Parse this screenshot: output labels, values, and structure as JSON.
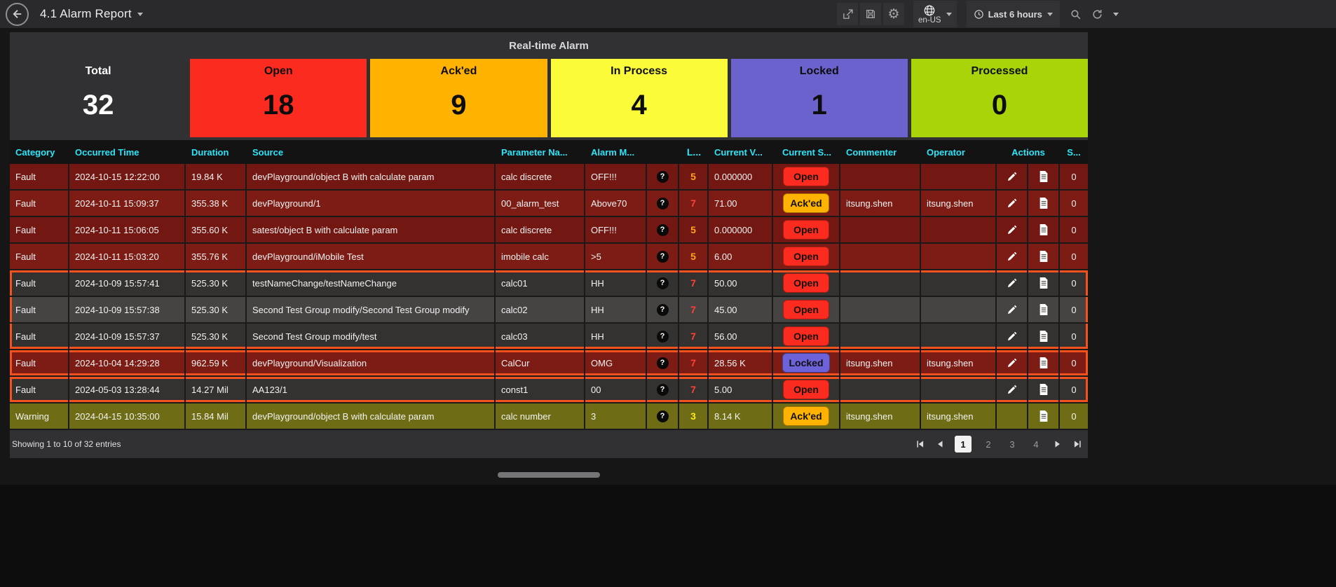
{
  "topbar": {
    "title": "4.1 Alarm Report",
    "language": {
      "label": "en-US"
    },
    "time_picker": {
      "label": "Last 6 hours"
    },
    "icons": [
      "back-arrow-icon",
      "share-icon",
      "save-icon",
      "gear-icon",
      "globe-icon",
      "clock-icon",
      "search-icon",
      "refresh-icon",
      "caret-down-icon"
    ],
    "gear_glyph": "⚙"
  },
  "panel": {
    "title": "Real-time Alarm",
    "stats": [
      {
        "label": "Total",
        "value": "32",
        "bg": "",
        "fg": "#ffffff"
      },
      {
        "label": "Open",
        "value": "18",
        "bg": "#fb2b1f",
        "fg": "#0d0d0d"
      },
      {
        "label": "Ack'ed",
        "value": "9",
        "bg": "#ffb200",
        "fg": "#0d0d0d"
      },
      {
        "label": "In Process",
        "value": "4",
        "bg": "#fbfb3a",
        "fg": "#0d0d0d"
      },
      {
        "label": "Locked",
        "value": "1",
        "bg": "#6b62ce",
        "fg": "#0d0d0d"
      },
      {
        "label": "Processed",
        "value": "0",
        "bg": "#a8d409",
        "fg": "#0d0d0d"
      }
    ],
    "table": {
      "headers": [
        {
          "label": "Category",
          "key": "category"
        },
        {
          "label": "Occurred Time",
          "key": "time"
        },
        {
          "label": "Duration",
          "key": "duration"
        },
        {
          "label": "Source",
          "key": "source"
        },
        {
          "label": "Parameter Na...",
          "key": "parameter"
        },
        {
          "label": "Alarm M...",
          "key": "message"
        },
        {
          "label": "",
          "key": "help"
        },
        {
          "label": "L...",
          "key": "level"
        },
        {
          "label": "Current V...",
          "key": "value"
        },
        {
          "label": "Current S...",
          "key": "status"
        },
        {
          "label": "Commenter",
          "key": "commenter"
        },
        {
          "label": "Operator",
          "key": "operator"
        },
        {
          "label": "Actions",
          "key": "actions"
        },
        {
          "label": "S...",
          "key": "s"
        }
      ],
      "row_icons": [
        "help-icon",
        "pencil-icon",
        "document-icon"
      ],
      "rows": [
        {
          "category": "Fault",
          "occurred_time": "2024-10-15 12:22:00",
          "duration": "19.84 K",
          "source": "devPlayground/object B with calculate param",
          "parameter_name": "calc discrete",
          "alarm_message": "OFF!!!",
          "level": "5",
          "level_color": "#ffa421",
          "current_value": "0.000000",
          "current_state": "Open",
          "state_bg": "#fb2b1f",
          "commenter": "",
          "operator": "",
          "actions": [
            "edit",
            "log"
          ],
          "s_value": "0",
          "theme": "maroon-a",
          "highlight": ""
        },
        {
          "category": "Fault",
          "occurred_time": "2024-10-11 15:09:37",
          "duration": "355.38 K",
          "source": "devPlayground/1",
          "parameter_name": "00_alarm_test",
          "alarm_message": "Above70",
          "level": "7",
          "level_color": "#ff4136",
          "current_value": "71.00",
          "current_state": "Ack'ed",
          "state_bg": "#ffb300",
          "commenter": "itsung.shen",
          "operator": "itsung.shen",
          "actions": [
            "edit",
            "log"
          ],
          "s_value": "0",
          "theme": "maroon-b",
          "highlight": ""
        },
        {
          "category": "Fault",
          "occurred_time": "2024-10-11 15:06:05",
          "duration": "355.60 K",
          "source": "satest/object B with calculate param",
          "parameter_name": "calc discrete",
          "alarm_message": "OFF!!!",
          "level": "5",
          "level_color": "#ffa421",
          "current_value": "0.000000",
          "current_state": "Open",
          "state_bg": "#fb2b1f",
          "commenter": "",
          "operator": "",
          "actions": [
            "edit",
            "log"
          ],
          "s_value": "0",
          "theme": "maroon-a",
          "highlight": ""
        },
        {
          "category": "Fault",
          "occurred_time": "2024-10-11 15:03:20",
          "duration": "355.76 K",
          "source": "devPlayground/iMobile Test",
          "parameter_name": "imobile calc",
          "alarm_message": ">5",
          "level": "5",
          "level_color": "#ffa421",
          "current_value": "6.00",
          "current_state": "Open",
          "state_bg": "#fb2b1f",
          "commenter": "",
          "operator": "",
          "actions": [
            "edit",
            "log"
          ],
          "s_value": "0",
          "theme": "maroon-b",
          "highlight": ""
        },
        {
          "category": "Fault",
          "occurred_time": "2024-10-09 15:57:41",
          "duration": "525.30 K",
          "source": "testNameChange/testNameChange",
          "parameter_name": "calc01",
          "alarm_message": "HH",
          "level": "7",
          "level_color": "#ff4136",
          "current_value": "50.00",
          "current_state": "Open",
          "state_bg": "#fb2b1f",
          "commenter": "",
          "operator": "",
          "actions": [
            "edit",
            "log"
          ],
          "s_value": "0",
          "theme": "gray-a",
          "highlight": "start"
        },
        {
          "category": "Fault",
          "occurred_time": "2024-10-09 15:57:38",
          "duration": "525.30 K",
          "source": "Second Test Group modify/Second Test Group modify",
          "parameter_name": "calc02",
          "alarm_message": "HH",
          "level": "7",
          "level_color": "#ff4136",
          "current_value": "45.00",
          "current_state": "Open",
          "state_bg": "#fb2b1f",
          "commenter": "",
          "operator": "",
          "actions": [
            "edit",
            "log"
          ],
          "s_value": "0",
          "theme": "gray-b",
          "highlight": "mid"
        },
        {
          "category": "Fault",
          "occurred_time": "2024-10-09 15:57:37",
          "duration": "525.30 K",
          "source": "Second Test Group modify/test",
          "parameter_name": "calc03",
          "alarm_message": "HH",
          "level": "7",
          "level_color": "#ff4136",
          "current_value": "56.00",
          "current_state": "Open",
          "state_bg": "#fb2b1f",
          "commenter": "",
          "operator": "",
          "actions": [
            "edit",
            "log"
          ],
          "s_value": "0",
          "theme": "gray-a",
          "highlight": "end"
        },
        {
          "category": "Fault",
          "occurred_time": "2024-10-04 14:29:28",
          "duration": "962.59 K",
          "source": "devPlayground/Visualization",
          "parameter_name": "CalCur",
          "alarm_message": "OMG",
          "level": "7",
          "level_color": "#ff4136",
          "current_value": "28.56 K",
          "current_state": "Locked",
          "state_bg": "#6e62d8",
          "commenter": "itsung.shen",
          "operator": "itsung.shen",
          "actions": [
            "edit",
            "log"
          ],
          "s_value": "0",
          "theme": "maroon-b",
          "highlight": "single"
        },
        {
          "category": "Fault",
          "occurred_time": "2024-05-03 13:28:44",
          "duration": "14.27 Mil",
          "source": "AA123/1",
          "parameter_name": "const1",
          "alarm_message": "00",
          "level": "7",
          "level_color": "#ff4136",
          "current_value": "5.00",
          "current_state": "Open",
          "state_bg": "#fb2b1f",
          "commenter": "",
          "operator": "",
          "actions": [
            "edit",
            "log"
          ],
          "s_value": "0",
          "theme": "gray-a",
          "highlight": "single"
        },
        {
          "category": "Warning",
          "occurred_time": "2024-04-15 10:35:00",
          "duration": "15.84 Mil",
          "source": "devPlayground/object B with calculate param",
          "parameter_name": "calc number",
          "alarm_message": "3",
          "level": "3",
          "level_color": "#ffe81a",
          "current_value": "8.14 K",
          "current_state": "Ack'ed",
          "state_bg": "#ffb300",
          "commenter": "itsung.shen",
          "operator": "itsung.shen",
          "actions": [
            "log"
          ],
          "s_value": "0",
          "theme": "olive",
          "highlight": ""
        }
      ]
    },
    "footer": {
      "showing": "Showing 1 to 10 of 32 entries",
      "pages": [
        "1",
        "2",
        "3",
        "4"
      ],
      "active_page": "1",
      "pager_icons": [
        "first-page-icon",
        "prev-page-icon",
        "next-page-icon",
        "last-page-icon"
      ]
    }
  }
}
